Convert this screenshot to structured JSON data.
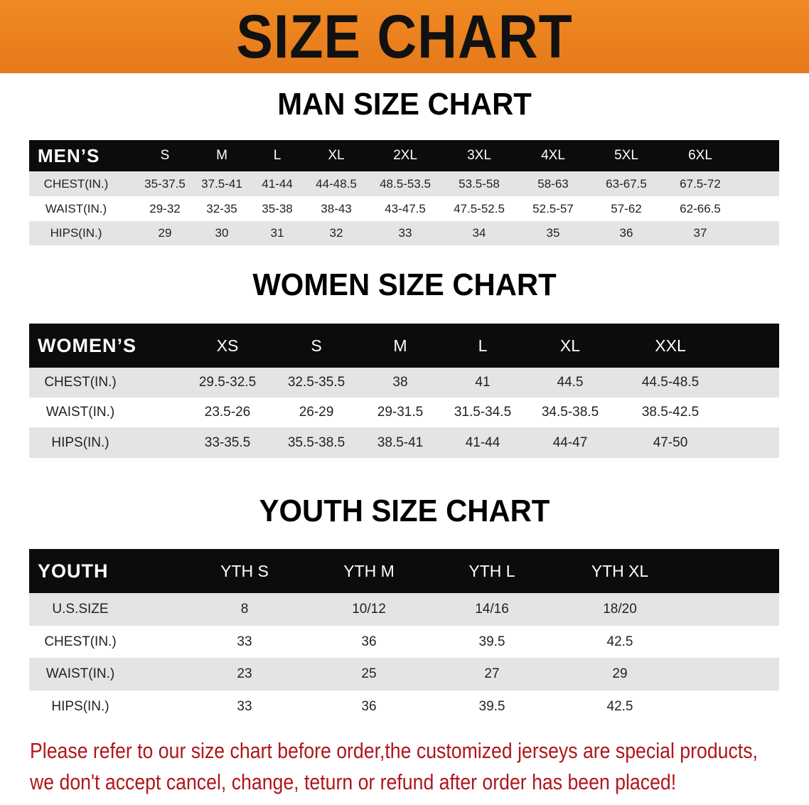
{
  "banner": {
    "title": "SIZE CHART",
    "color": "#ec8320"
  },
  "men": {
    "title": "MAN SIZE CHART",
    "header": "MEN’S",
    "sizes": [
      "S",
      "M",
      "L",
      "XL",
      "2XL",
      "3XL",
      "4XL",
      "5XL",
      "6XL"
    ],
    "rows": [
      {
        "label": "CHEST(IN.)",
        "values": [
          "35-37.5",
          "37.5-41",
          "41-44",
          "44-48.5",
          "48.5-53.5",
          "53.5-58",
          "58-63",
          "63-67.5",
          "67.5-72"
        ]
      },
      {
        "label": "WAIST(IN.)",
        "values": [
          "29-32",
          "32-35",
          "35-38",
          "38-43",
          "43-47.5",
          "47.5-52.5",
          "52.5-57",
          "57-62",
          "62-66.5"
        ]
      },
      {
        "label": "HIPS(IN.)",
        "values": [
          "29",
          "30",
          "31",
          "32",
          "33",
          "34",
          "35",
          "36",
          "37"
        ]
      }
    ]
  },
  "women": {
    "title": "WOMEN SIZE CHART",
    "header": "WOMEN’S",
    "sizes": [
      "XS",
      "S",
      "M",
      "L",
      "XL",
      "XXL"
    ],
    "rows": [
      {
        "label": "CHEST(IN.)",
        "values": [
          "29.5-32.5",
          "32.5-35.5",
          "38",
          "41",
          "44.5",
          "44.5-48.5"
        ]
      },
      {
        "label": "WAIST(IN.)",
        "values": [
          "23.5-26",
          "26-29",
          "29-31.5",
          "31.5-34.5",
          "34.5-38.5",
          "38.5-42.5"
        ]
      },
      {
        "label": "HIPS(IN.)",
        "values": [
          "33-35.5",
          "35.5-38.5",
          "38.5-41",
          "41-44",
          "44-47",
          "47-50"
        ]
      }
    ]
  },
  "youth": {
    "title": "YOUTH SIZE CHART",
    "header": "YOUTH",
    "sizes": [
      "YTH S",
      "YTH M",
      "YTH L",
      "YTH XL"
    ],
    "rows": [
      {
        "label": "U.S.SIZE",
        "values": [
          "8",
          "10/12",
          "14/16",
          "18/20"
        ]
      },
      {
        "label": "CHEST(IN.)",
        "values": [
          "33",
          "36",
          "39.5",
          "42.5"
        ]
      },
      {
        "label": "WAIST(IN.)",
        "values": [
          "23",
          "25",
          "27",
          "29"
        ]
      },
      {
        "label": "HIPS(IN.)",
        "values": [
          "33",
          "36",
          "39.5",
          "42.5"
        ]
      }
    ]
  },
  "notice": {
    "line1": "Please refer to our size chart before order,the customized jerseys are special products,",
    "line2": "we don't accept cancel, change, teturn or refund after order has been placed!",
    "color": "#b0161c"
  }
}
